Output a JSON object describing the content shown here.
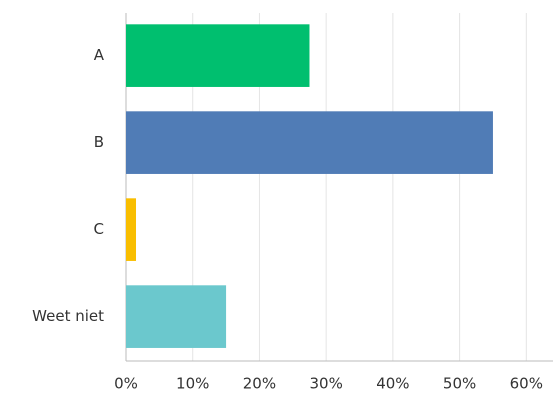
{
  "chart_data": {
    "type": "bar",
    "orientation": "horizontal",
    "categories": [
      "A",
      "B",
      "C",
      "Weet niet"
    ],
    "values": [
      27.5,
      55,
      1.5,
      15
    ],
    "colors": [
      "#00bf6f",
      "#507cb6",
      "#f9be00",
      "#6bc8cd"
    ],
    "xlim": [
      0,
      64
    ],
    "xticks": [
      {
        "value": 0,
        "label": "0%"
      },
      {
        "value": 10,
        "label": "10%"
      },
      {
        "value": 20,
        "label": "20%"
      },
      {
        "value": 30,
        "label": "30%"
      },
      {
        "value": 40,
        "label": "40%"
      },
      {
        "value": 50,
        "label": "50%"
      },
      {
        "value": 60,
        "label": "60%"
      }
    ],
    "grid": true
  }
}
